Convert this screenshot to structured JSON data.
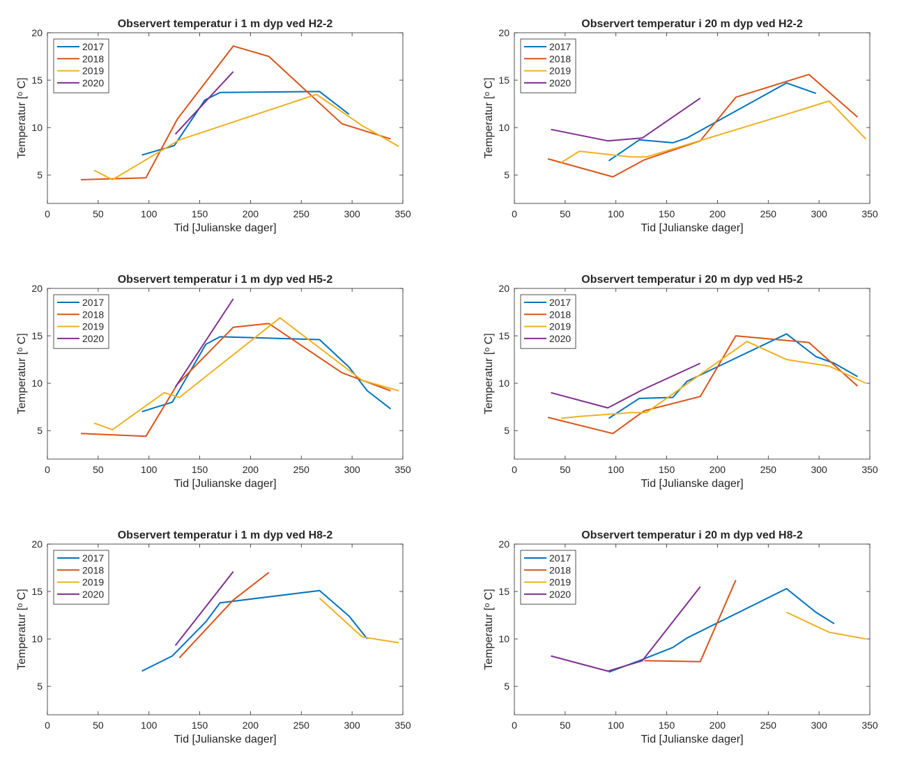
{
  "colors": {
    "2017": "#0072BD",
    "2018": "#D95319",
    "2019": "#EDB120",
    "2020": "#7E2F8E"
  },
  "chart_data": [
    {
      "type": "line",
      "title": "Observert temperatur i 1 m dyp ved H2-2",
      "xlabel": "Tid [Julianske dager]",
      "ylabel": "Temperatur [ᵒ C]",
      "xlim": [
        0,
        350
      ],
      "ylim": [
        2,
        20
      ],
      "xticks": [
        "0",
        "50",
        "100",
        "150",
        "200",
        "250",
        "300",
        "350"
      ],
      "yticks": [
        "5",
        "10",
        "15",
        "20"
      ],
      "legend": "top-left",
      "series": [
        {
          "name": "2017",
          "x": [
            93,
            125,
            155,
            170,
            268,
            297
          ],
          "y": [
            7.1,
            8.1,
            12.9,
            13.7,
            13.8,
            11.4
          ]
        },
        {
          "name": "2018",
          "x": [
            33,
            97,
            128,
            183,
            218,
            290,
            338
          ],
          "y": [
            4.5,
            4.7,
            10.9,
            18.6,
            17.5,
            10.4,
            8.8
          ]
        },
        {
          "name": "2019",
          "x": [
            46,
            64,
            130,
            265,
            310,
            346
          ],
          "y": [
            5.5,
            4.5,
            8.7,
            13.5,
            10.2,
            8.0
          ]
        },
        {
          "name": "2020",
          "x": [
            126,
            183
          ],
          "y": [
            9.3,
            15.9
          ]
        }
      ]
    },
    {
      "type": "line",
      "title": "Observert temperatur i 20 m dyp ved H2-2",
      "xlabel": "Tid [Julianske dager]",
      "ylabel": "Temperatur [ᵒ C]",
      "xlim": [
        0,
        350
      ],
      "ylim": [
        2,
        20
      ],
      "xticks": [
        "0",
        "50",
        "100",
        "150",
        "200",
        "250",
        "300",
        "350"
      ],
      "yticks": [
        "5",
        "10",
        "15",
        "20"
      ],
      "legend": "top-left",
      "series": [
        {
          "name": "2017",
          "x": [
            93,
            123,
            156,
            170,
            268,
            297
          ],
          "y": [
            6.5,
            8.7,
            8.4,
            8.9,
            14.7,
            13.6
          ]
        },
        {
          "name": "2018",
          "x": [
            33,
            97,
            128,
            183,
            218,
            290,
            338
          ],
          "y": [
            6.7,
            4.8,
            6.6,
            8.6,
            13.2,
            15.6,
            11.1
          ]
        },
        {
          "name": "2019",
          "x": [
            46,
            64,
            115,
            130,
            265,
            310,
            346
          ],
          "y": [
            6.3,
            7.5,
            6.9,
            6.9,
            11.3,
            12.8,
            8.8
          ]
        },
        {
          "name": "2020",
          "x": [
            36,
            92,
            126,
            183
          ],
          "y": [
            9.8,
            8.6,
            8.9,
            13.1
          ]
        }
      ]
    },
    {
      "type": "line",
      "title": "Observert temperatur i 1 m dyp ved H5-2",
      "xlabel": "Tid [Julianske dager]",
      "ylabel": "Temperatur [ᵒ C]",
      "xlim": [
        0,
        350
      ],
      "ylim": [
        2,
        20
      ],
      "xticks": [
        "0",
        "50",
        "100",
        "150",
        "200",
        "250",
        "300",
        "350"
      ],
      "yticks": [
        "5",
        "10",
        "15",
        "20"
      ],
      "legend": "top-left",
      "series": [
        {
          "name": "2017",
          "x": [
            93,
            123,
            156,
            170,
            268,
            297,
            315,
            338
          ],
          "y": [
            7.0,
            8.0,
            14.1,
            14.9,
            14.6,
            11.7,
            9.2,
            7.3
          ]
        },
        {
          "name": "2018",
          "x": [
            33,
            97,
            128,
            183,
            218,
            290,
            338
          ],
          "y": [
            4.7,
            4.4,
            9.9,
            15.9,
            16.3,
            11.1,
            9.2
          ]
        },
        {
          "name": "2019",
          "x": [
            46,
            64,
            115,
            130,
            229,
            310,
            346
          ],
          "y": [
            5.8,
            5.1,
            9.0,
            8.5,
            16.9,
            10.3,
            9.2
          ]
        },
        {
          "name": "2020",
          "x": [
            126,
            183
          ],
          "y": [
            9.6,
            18.9
          ]
        }
      ]
    },
    {
      "type": "line",
      "title": "Observert temperatur i 20 m dyp ved H5-2",
      "xlabel": "Tid [Julianske dager]",
      "ylabel": "Temperatur [ᵒ C]",
      "xlim": [
        0,
        350
      ],
      "ylim": [
        2,
        20
      ],
      "xticks": [
        "0",
        "50",
        "100",
        "150",
        "200",
        "250",
        "300",
        "350"
      ],
      "yticks": [
        "5",
        "10",
        "15",
        "20"
      ],
      "legend": "top-left",
      "series": [
        {
          "name": "2017",
          "x": [
            93,
            123,
            156,
            170,
            268,
            297,
            315,
            338
          ],
          "y": [
            6.3,
            8.4,
            8.5,
            10.2,
            15.2,
            12.8,
            12.1,
            10.7
          ]
        },
        {
          "name": "2018",
          "x": [
            33,
            97,
            128,
            183,
            218,
            290,
            338
          ],
          "y": [
            6.4,
            4.7,
            7.1,
            8.6,
            15.0,
            14.3,
            9.7
          ]
        },
        {
          "name": "2019",
          "x": [
            46,
            64,
            115,
            130,
            229,
            268,
            310,
            346
          ],
          "y": [
            6.3,
            6.5,
            6.9,
            6.9,
            14.4,
            12.5,
            11.8,
            10.0
          ]
        },
        {
          "name": "2020",
          "x": [
            36,
            92,
            126,
            183
          ],
          "y": [
            9.0,
            7.4,
            9.3,
            12.1
          ]
        }
      ]
    },
    {
      "type": "line",
      "title": "Observert temperatur i 1 m dyp ved H8-2",
      "xlabel": "Tid [Julianske dager]",
      "ylabel": "Temperatur [ᵒ C]",
      "xlim": [
        0,
        350
      ],
      "ylim": [
        2,
        20
      ],
      "xticks": [
        "0",
        "50",
        "100",
        "150",
        "200",
        "250",
        "300",
        "350"
      ],
      "yticks": [
        "5",
        "10",
        "15",
        "20"
      ],
      "legend": "top-left",
      "series": [
        {
          "name": "2017",
          "x": [
            93,
            123,
            156,
            170,
            268,
            297,
            315
          ],
          "y": [
            6.6,
            8.2,
            11.8,
            13.8,
            15.1,
            12.4,
            10.0
          ]
        },
        {
          "name": "2018",
          "x": [
            130,
            183,
            218
          ],
          "y": [
            8.0,
            14.1,
            17.0
          ]
        },
        {
          "name": "2019",
          "x": [
            268,
            310,
            346
          ],
          "y": [
            14.3,
            10.2,
            9.6
          ]
        },
        {
          "name": "2020",
          "x": [
            126,
            183
          ],
          "y": [
            9.3,
            17.1
          ]
        }
      ]
    },
    {
      "type": "line",
      "title": "Observert temperatur i 20 m dyp ved H8-2",
      "xlabel": "Tid [Julianske dager]",
      "ylabel": "Temperatur [ᵒ C]",
      "xlim": [
        0,
        350
      ],
      "ylim": [
        2,
        20
      ],
      "xticks": [
        "0",
        "50",
        "100",
        "150",
        "200",
        "250",
        "300",
        "350"
      ],
      "yticks": [
        "5",
        "10",
        "15",
        "20"
      ],
      "legend": "top-left",
      "series": [
        {
          "name": "2017",
          "x": [
            93,
            123,
            156,
            170,
            268,
            297,
            315
          ],
          "y": [
            6.5,
            7.7,
            9.1,
            10.1,
            15.3,
            12.8,
            11.6
          ]
        },
        {
          "name": "2018",
          "x": [
            128,
            183,
            218
          ],
          "y": [
            7.7,
            7.6,
            16.2
          ]
        },
        {
          "name": "2019",
          "x": [
            268,
            310,
            346
          ],
          "y": [
            12.8,
            10.7,
            10.0
          ]
        },
        {
          "name": "2020",
          "x": [
            36,
            92,
            126,
            183
          ],
          "y": [
            8.2,
            6.6,
            7.7,
            15.5
          ]
        }
      ]
    }
  ]
}
